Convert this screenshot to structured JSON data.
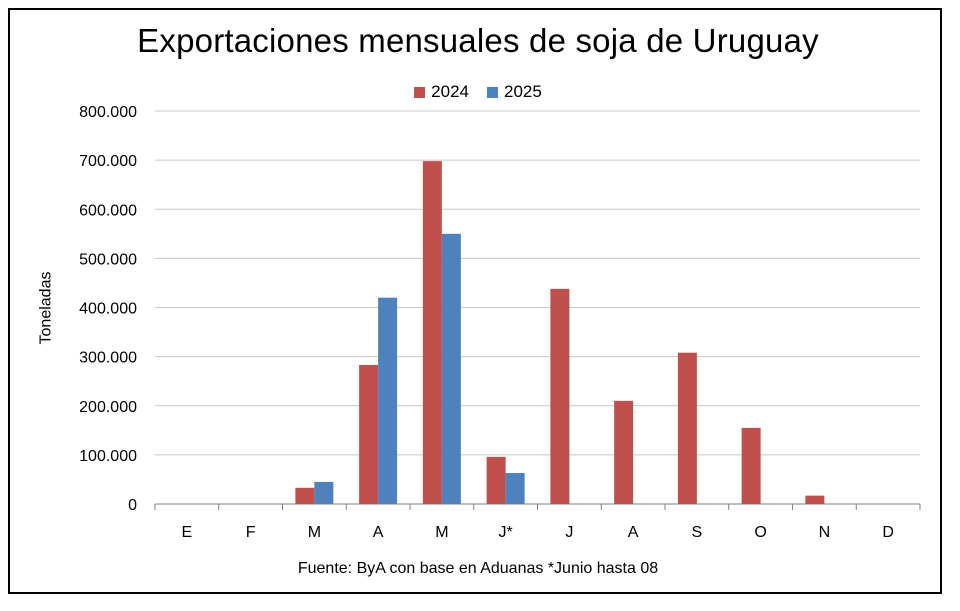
{
  "chart_data": {
    "type": "bar",
    "title": "Exportaciones mensuales de soja de Uruguay",
    "ylabel": "Toneladas",
    "xlabel": "",
    "source": "Fuente: ByA con base en Aduanas *Junio hasta 08",
    "categories": [
      "E",
      "F",
      "M",
      "A",
      "M",
      "J*",
      "J",
      "A",
      "S",
      "O",
      "N",
      "D"
    ],
    "yticks": [
      "0",
      "100.000",
      "200.000",
      "300.000",
      "400.000",
      "500.000",
      "600.000",
      "700.000",
      "800.000"
    ],
    "ylim": [
      0,
      800000
    ],
    "grid": true,
    "legend_position": "top",
    "series": [
      {
        "name": "2024",
        "color": "#c0504d",
        "values": [
          0,
          0,
          33000,
          283000,
          698000,
          96000,
          438000,
          210000,
          308000,
          155000,
          17000,
          0
        ]
      },
      {
        "name": "2025",
        "color": "#4f81bd",
        "values": [
          0,
          0,
          45000,
          420000,
          550000,
          63000,
          null,
          null,
          null,
          null,
          null,
          null
        ]
      }
    ]
  }
}
